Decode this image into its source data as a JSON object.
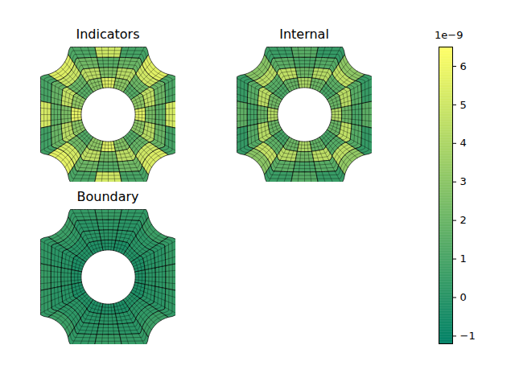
{
  "chart_data": {
    "type": "mesh_heatmap",
    "mesh": {
      "half_width": 1,
      "hole_radius": 0.4,
      "corner_radius": 0.42
    },
    "panels": [
      {
        "title": "Indicators",
        "values": [
          [
            5.6,
            3.1,
            1.4,
            3.0,
            5.5,
            2.9,
            1.5,
            3.2,
            5.7,
            3.0,
            1.3,
            3.1,
            5.5,
            2.8,
            1.4,
            3.0
          ],
          [
            2.4,
            4.6,
            2.1,
            4.4,
            2.6,
            4.5,
            2.0,
            4.7,
            2.5,
            4.4,
            2.2,
            4.6,
            2.3,
            4.5,
            1.9,
            4.4
          ],
          [
            1.6,
            2.1,
            5.1,
            2.0,
            1.5,
            2.2,
            4.9,
            1.9,
            1.7,
            2.0,
            5.2,
            2.1,
            1.4,
            2.2,
            5.0,
            2.0
          ],
          [
            5.2,
            1.1,
            5.6,
            0.9,
            5.0,
            1.2,
            5.5,
            1.0,
            5.3,
            0.8,
            5.7,
            1.1,
            5.1,
            1.0,
            5.4,
            0.9
          ]
        ]
      },
      {
        "title": "Internal",
        "values": [
          [
            4.1,
            2.0,
            1.0,
            2.1,
            3.9,
            1.9,
            1.1,
            2.2,
            4.2,
            2.0,
            0.9,
            2.1,
            4.0,
            1.8,
            1.0,
            2.0
          ],
          [
            2.0,
            4.4,
            1.6,
            4.3,
            2.1,
            4.6,
            1.5,
            4.5,
            1.9,
            4.3,
            1.7,
            4.4,
            2.2,
            4.5,
            1.4,
            4.6
          ],
          [
            1.0,
            1.5,
            4.6,
            1.4,
            1.1,
            1.6,
            4.4,
            1.5,
            0.9,
            1.4,
            4.7,
            1.6,
            1.0,
            1.5,
            4.5,
            1.4
          ],
          [
            1.6,
            0.5,
            3.1,
            0.4,
            1.5,
            0.6,
            2.9,
            0.5,
            1.7,
            0.4,
            3.0,
            0.6,
            1.4,
            0.5,
            3.2,
            0.4
          ]
        ]
      },
      {
        "title": "Boundary",
        "values": [
          [
            -0.2,
            -0.3,
            -0.1,
            -0.3,
            -0.2,
            -0.2,
            -0.1,
            -0.3,
            -0.2,
            -0.3,
            -0.1,
            -0.2,
            -0.2,
            -0.3,
            -0.1,
            -0.3
          ],
          [
            0.1,
            0.0,
            0.1,
            0.0,
            0.1,
            0.1,
            0.0,
            0.0,
            0.1,
            0.0,
            0.1,
            0.0,
            0.1,
            0.0,
            0.1,
            0.0
          ],
          [
            0.2,
            0.1,
            0.2,
            0.1,
            0.2,
            0.1,
            0.3,
            0.1,
            0.2,
            0.1,
            0.2,
            0.1,
            0.2,
            0.1,
            0.3,
            0.1
          ],
          [
            0.5,
            0.4,
            0.6,
            0.3,
            0.5,
            0.4,
            0.6,
            0.3,
            0.5,
            0.4,
            0.6,
            0.3,
            0.5,
            0.4,
            0.6,
            0.3
          ]
        ]
      }
    ],
    "colorbar": {
      "range": [
        -1.2,
        6.5
      ],
      "ticks": [
        -1,
        0,
        1,
        2,
        3,
        4,
        5,
        6
      ],
      "offset_label": "1e−9",
      "colors": [
        "#008066",
        "#ffff66"
      ]
    }
  }
}
